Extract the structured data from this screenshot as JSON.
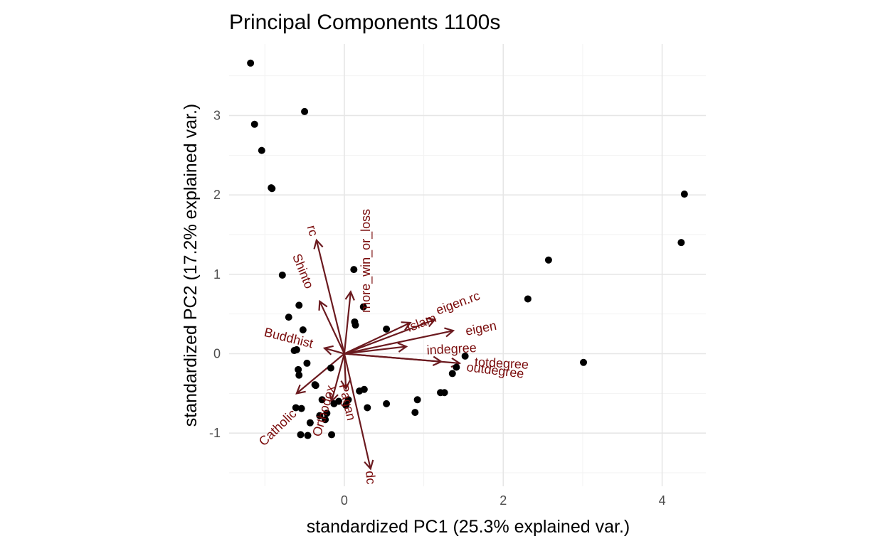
{
  "chart_data": {
    "type": "scatter",
    "title": "Principal Components 1100s",
    "xlabel": "standardized PC1 (25.3% explained var.)",
    "ylabel": "standardized PC2 (17.2% explained var.)",
    "xlim": [
      -1.45,
      4.55
    ],
    "ylim": [
      -1.67,
      3.9
    ],
    "x_ticks": [
      0,
      2,
      4
    ],
    "y_ticks": [
      -1,
      0,
      1,
      2,
      3
    ],
    "grid": true,
    "colors": {
      "points": "#000000",
      "arrows": "#6b1a1f",
      "arrow_labels": "#7a0c0c"
    },
    "points": [
      {
        "x": -1.18,
        "y": 3.66
      },
      {
        "x": -0.5,
        "y": 3.05
      },
      {
        "x": -1.13,
        "y": 2.89
      },
      {
        "x": -1.04,
        "y": 2.56
      },
      {
        "x": -0.92,
        "y": 2.09
      },
      {
        "x": -0.91,
        "y": 2.08
      },
      {
        "x": -0.78,
        "y": 0.99
      },
      {
        "x": -0.57,
        "y": 0.61
      },
      {
        "x": -0.7,
        "y": 0.46
      },
      {
        "x": -0.52,
        "y": 0.3
      },
      {
        "x": -0.63,
        "y": 0.04
      },
      {
        "x": -0.6,
        "y": 0.05
      },
      {
        "x": -0.47,
        "y": -0.12
      },
      {
        "x": -0.58,
        "y": -0.2
      },
      {
        "x": -0.57,
        "y": -0.27
      },
      {
        "x": -0.37,
        "y": -0.39
      },
      {
        "x": -0.36,
        "y": -0.4
      },
      {
        "x": -0.17,
        "y": -0.18
      },
      {
        "x": -0.28,
        "y": -0.58
      },
      {
        "x": -0.61,
        "y": -0.68
      },
      {
        "x": -0.54,
        "y": -0.69
      },
      {
        "x": -0.22,
        "y": -0.75
      },
      {
        "x": -0.31,
        "y": -0.78
      },
      {
        "x": -0.24,
        "y": -0.83
      },
      {
        "x": -0.43,
        "y": -0.87
      },
      {
        "x": -0.55,
        "y": -1.02
      },
      {
        "x": -0.46,
        "y": -1.03
      },
      {
        "x": -0.16,
        "y": -1.02
      },
      {
        "x": -0.13,
        "y": -0.63
      },
      {
        "x": -0.07,
        "y": -0.6
      },
      {
        "x": 0.02,
        "y": -0.65
      },
      {
        "x": 0.05,
        "y": -0.58
      },
      {
        "x": 0.19,
        "y": -0.47
      },
      {
        "x": 0.25,
        "y": -0.45
      },
      {
        "x": 0.29,
        "y": -0.68
      },
      {
        "x": 0.53,
        "y": -0.63
      },
      {
        "x": 0.89,
        "y": -0.74
      },
      {
        "x": 0.92,
        "y": -0.58
      },
      {
        "x": 1.21,
        "y": -0.49
      },
      {
        "x": 1.26,
        "y": -0.49
      },
      {
        "x": 1.36,
        "y": -0.25
      },
      {
        "x": 1.41,
        "y": -0.17
      },
      {
        "x": 1.52,
        "y": -0.03
      },
      {
        "x": 0.12,
        "y": 1.06
      },
      {
        "x": 0.24,
        "y": 0.59
      },
      {
        "x": 0.13,
        "y": 0.4
      },
      {
        "x": 0.14,
        "y": 0.36
      },
      {
        "x": 0.53,
        "y": 0.31
      },
      {
        "x": 2.31,
        "y": 0.69
      },
      {
        "x": 2.57,
        "y": 1.18
      },
      {
        "x": 3.01,
        "y": -0.11
      },
      {
        "x": 4.24,
        "y": 1.4
      },
      {
        "x": 4.28,
        "y": 2.01
      }
    ],
    "arrows": [
      {
        "name": "rc",
        "x": -0.35,
        "y": 1.43,
        "label_x": -0.4,
        "label_y": 1.55,
        "angle": 75
      },
      {
        "name": "Shinto",
        "x": -0.31,
        "y": 0.66,
        "label_x": -0.52,
        "label_y": 1.04,
        "angle": 68
      },
      {
        "name": "more_win_or_loss",
        "x": 0.08,
        "y": 0.78,
        "label_x": 0.27,
        "label_y": 1.17,
        "angle": -90
      },
      {
        "name": "Buddhist",
        "x": -0.25,
        "y": 0.07,
        "label_x": -0.7,
        "label_y": 0.2,
        "angle": 14
      },
      {
        "name": "Islam",
        "x": 0.83,
        "y": 0.39,
        "label_x": 0.97,
        "label_y": 0.39,
        "angle": -21
      },
      {
        "name": "eigen.rc",
        "x": 1.14,
        "y": 0.43,
        "label_x": 1.43,
        "label_y": 0.64,
        "angle": -20
      },
      {
        "name": "eigen",
        "x": 1.37,
        "y": 0.29,
        "label_x": 1.72,
        "label_y": 0.32,
        "angle": -11
      },
      {
        "name": "indegree",
        "x": 0.78,
        "y": 0.09,
        "label_x": 1.35,
        "label_y": 0.06,
        "angle": -3
      },
      {
        "name": "totdegree",
        "x": 1.22,
        "y": -0.1,
        "label_x": 1.98,
        "label_y": -0.12,
        "angle": 3
      },
      {
        "name": "outdegree",
        "x": 1.45,
        "y": -0.12,
        "label_x": 1.9,
        "label_y": -0.21,
        "angle": 7
      },
      {
        "name": "Catholic",
        "x": -0.6,
        "y": -0.5,
        "label_x": -0.84,
        "label_y": -0.93,
        "angle": -44
      },
      {
        "name": "Orthodox",
        "x": -0.16,
        "y": -0.6,
        "label_x": -0.26,
        "label_y": -0.72,
        "angle": -74
      },
      {
        "name": "Pagan",
        "x": 0.02,
        "y": -0.44,
        "label_x": 0.04,
        "label_y": -0.61,
        "angle": 77
      },
      {
        "name": "dc",
        "x": 0.33,
        "y": -1.45,
        "label_x": 0.33,
        "label_y": -1.56,
        "angle": 85
      }
    ]
  }
}
